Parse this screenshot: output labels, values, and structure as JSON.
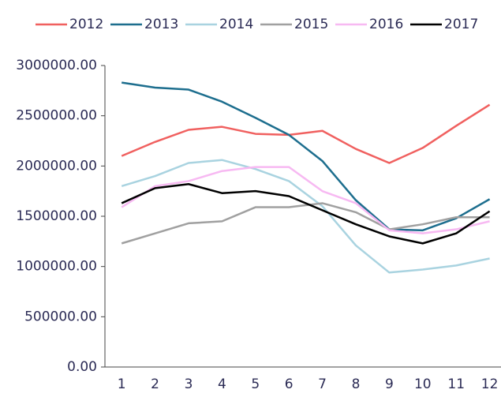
{
  "chart_data": {
    "type": "line",
    "categories": [
      "1",
      "2",
      "3",
      "4",
      "5",
      "6",
      "7",
      "8",
      "9",
      "10",
      "11",
      "12"
    ],
    "series": [
      {
        "name": "2012",
        "color": "#f0605f",
        "values": [
          2100000,
          2240000,
          2360000,
          2390000,
          2320000,
          2310000,
          2350000,
          2170000,
          2030000,
          2180000,
          2400000,
          2610000
        ]
      },
      {
        "name": "2013",
        "color": "#1d6e8e",
        "values": [
          2830000,
          2780000,
          2760000,
          2640000,
          2480000,
          2310000,
          2050000,
          1660000,
          1370000,
          1360000,
          1480000,
          1670000
        ]
      },
      {
        "name": "2014",
        "color": "#a9d3e0",
        "values": [
          1800000,
          1900000,
          2030000,
          2060000,
          1970000,
          1850000,
          1600000,
          1210000,
          940000,
          970000,
          1010000,
          1080000
        ]
      },
      {
        "name": "2015",
        "color": "#a0a0a0",
        "values": [
          1230000,
          1330000,
          1430000,
          1450000,
          1590000,
          1590000,
          1630000,
          1540000,
          1370000,
          1420000,
          1490000,
          1490000
        ]
      },
      {
        "name": "2016",
        "color": "#f7b9f2",
        "values": [
          1590000,
          1800000,
          1850000,
          1950000,
          1990000,
          1990000,
          1750000,
          1630000,
          1360000,
          1330000,
          1370000,
          1450000
        ]
      },
      {
        "name": "2017",
        "color": "#000000",
        "values": [
          1630000,
          1780000,
          1820000,
          1730000,
          1750000,
          1700000,
          1560000,
          1420000,
          1300000,
          1230000,
          1330000,
          1550000
        ]
      }
    ],
    "ylim": [
      0,
      3000000
    ],
    "yticks": [
      {
        "value": 0,
        "label": "0.00"
      },
      {
        "value": 500000,
        "label": "500000.00"
      },
      {
        "value": 1000000,
        "label": "1000000.00"
      },
      {
        "value": 1500000,
        "label": "1500000.00"
      },
      {
        "value": 2000000,
        "label": "2000000.00"
      },
      {
        "value": 2500000,
        "label": "2500000.00"
      },
      {
        "value": 3000000,
        "label": "3000000.00"
      }
    ],
    "grid": false,
    "legend": "top"
  }
}
